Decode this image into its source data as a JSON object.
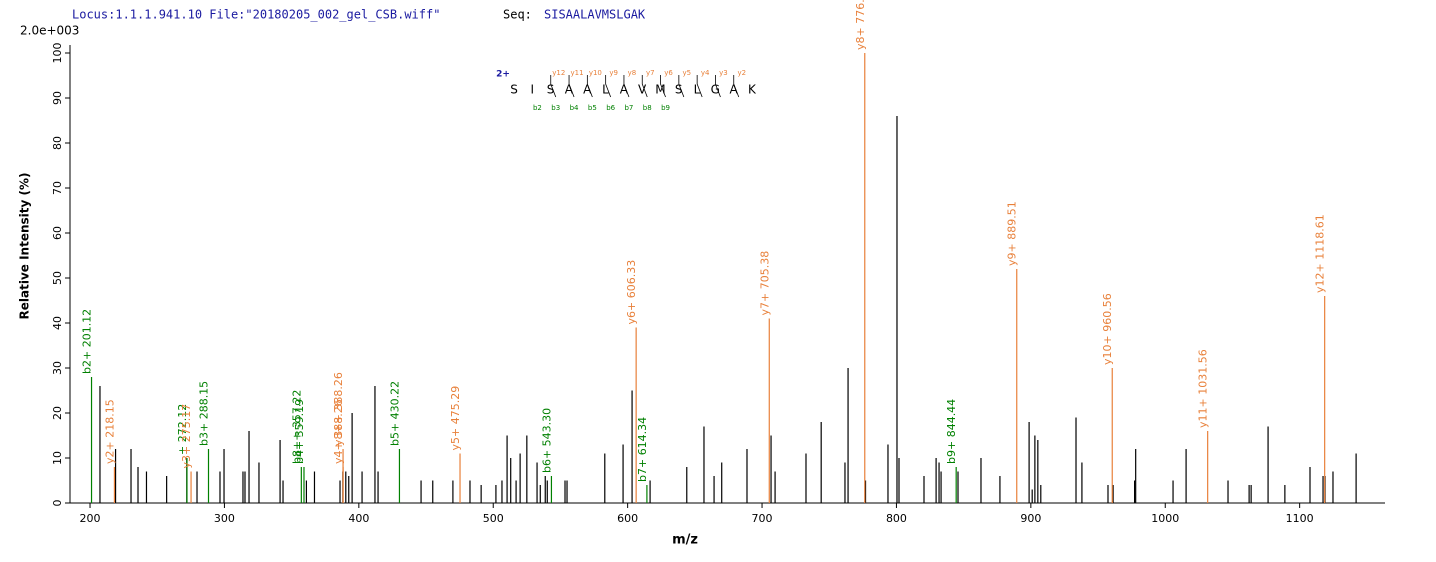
{
  "chart_data": {
    "type": "stem",
    "header": {
      "locus": "Locus:1.1.1.941.10 File:\"20180205_002_gel_CSB.wiff\"",
      "seq_label": "Seq:",
      "seq": "SISAALAVMSLGAK"
    },
    "scale_label": "2.0e+003",
    "x_label": "m/z",
    "y_label": "Relative   Intensity (%)",
    "xlim": [
      185.1,
      1163.5
    ],
    "ylim": [
      0,
      100
    ],
    "xticks": [
      200,
      300,
      400,
      500,
      600,
      700,
      800,
      900,
      1000,
      1100
    ],
    "yticks": [
      0,
      10,
      20,
      30,
      40,
      50,
      60,
      70,
      80,
      90,
      100
    ],
    "sequence": {
      "charge": "2+",
      "residues": [
        "S",
        "I",
        "S",
        "A",
        "A",
        "L",
        "A",
        "V",
        "M",
        "S",
        "L",
        "G",
        "A",
        "K"
      ],
      "y_ions": [
        "y12",
        "y11",
        "y10",
        "y9",
        "y8",
        "y7",
        "y6",
        "y5",
        "y4",
        "y3",
        "y2"
      ],
      "b_ions": [
        "b2",
        "b3",
        "b4",
        "b5",
        "b6",
        "b7",
        "b8",
        "b9"
      ]
    },
    "series": [
      {
        "color": "#000000",
        "x": [
          207.4,
          219,
          230.5,
          235.7,
          242,
          257,
          272,
          279.6,
          296.7,
          299.7,
          313.8,
          315.3,
          318.3,
          325.7,
          341.4,
          343.6,
          361,
          367,
          386,
          388.1,
          390.3,
          395,
          392.5,
          402.4,
          412,
          414.3,
          446.3,
          455,
          470,
          482.7,
          491,
          502,
          506.5,
          510.3,
          513,
          517,
          520,
          525,
          532.6,
          535,
          538.7,
          540.2,
          553.4,
          554.9,
          583,
          596.6,
          603.3,
          616.7,
          644,
          656.8,
          664.3,
          670,
          688.8,
          706.7,
          709.7,
          732.7,
          744,
          761.7,
          764,
          777,
          793.7,
          800.4,
          801.9,
          820.5,
          829.5,
          831.7,
          833.2,
          845.8,
          862.9,
          877,
          898.7,
          901,
          903,
          905.2,
          907.4,
          933.6,
          938,
          957.4,
          961.2,
          978,
          977.2,
          1005.8,
          1015.5,
          1046.7,
          1062.4,
          1063.9,
          1076.5,
          1089,
          1107.7,
          1117.4,
          1118.9,
          1124.8,
          1142
        ],
        "values": [
          26,
          12,
          12,
          8,
          7,
          6,
          10,
          7,
          7,
          12,
          7,
          7,
          16,
          9,
          14,
          5,
          5,
          7,
          5,
          7,
          7,
          20,
          6,
          7,
          26,
          7,
          5,
          5,
          5,
          5,
          4,
          4,
          5,
          15,
          10,
          5,
          11,
          15,
          9,
          4,
          6,
          5,
          5,
          5,
          11,
          13,
          25,
          5,
          8,
          17,
          6,
          9,
          12,
          15,
          7,
          11,
          18,
          9,
          30,
          5,
          13,
          86,
          10,
          6,
          10,
          9,
          7,
          7,
          10,
          6,
          18,
          3,
          15,
          14,
          4,
          19,
          9,
          4,
          4,
          12,
          5,
          5,
          12,
          5,
          4,
          4,
          17,
          4,
          8,
          6,
          6,
          7,
          11
        ]
      },
      {
        "color": "#008000",
        "x": [
          201.12,
          272.12,
          288.15,
          357.22,
          359.19,
          430.22,
          543.3,
          614.34,
          844.44
        ],
        "values": [
          28,
          10,
          12,
          8,
          8,
          12,
          6,
          4,
          8
        ],
        "peak_labels": [
          "b2+ 201.12",
          "+ 272.12",
          "b3+ 288.15",
          "b8++ 357.22",
          "b4+ 359.19",
          "b5+ 430.22",
          "b6+ 543.30",
          "b7+ 614.34",
          "b9+ 844.44"
        ]
      },
      {
        "color": "#e8803a",
        "x": [
          218.15,
          275.17,
          388.26,
          388.26,
          475.29,
          606.33,
          705.38,
          776.43,
          889.51,
          960.56,
          1031.56,
          1118.61
        ],
        "values": [
          8,
          7,
          8,
          12,
          11,
          39,
          41,
          100,
          52,
          30,
          16,
          46
        ],
        "peak_labels": [
          "y2+ 218.15",
          "y3+ 275.17",
          "y4+ 388.26",
          "y8++ 388.26",
          "y5+ 475.29",
          "y6+ 606.33",
          "y7+ 705.38",
          "y8+ 776.43",
          "y9+ 889.51",
          "y10+ 960.56",
          "y11+ 1031.56",
          "y12+ 1118.61"
        ]
      }
    ]
  }
}
